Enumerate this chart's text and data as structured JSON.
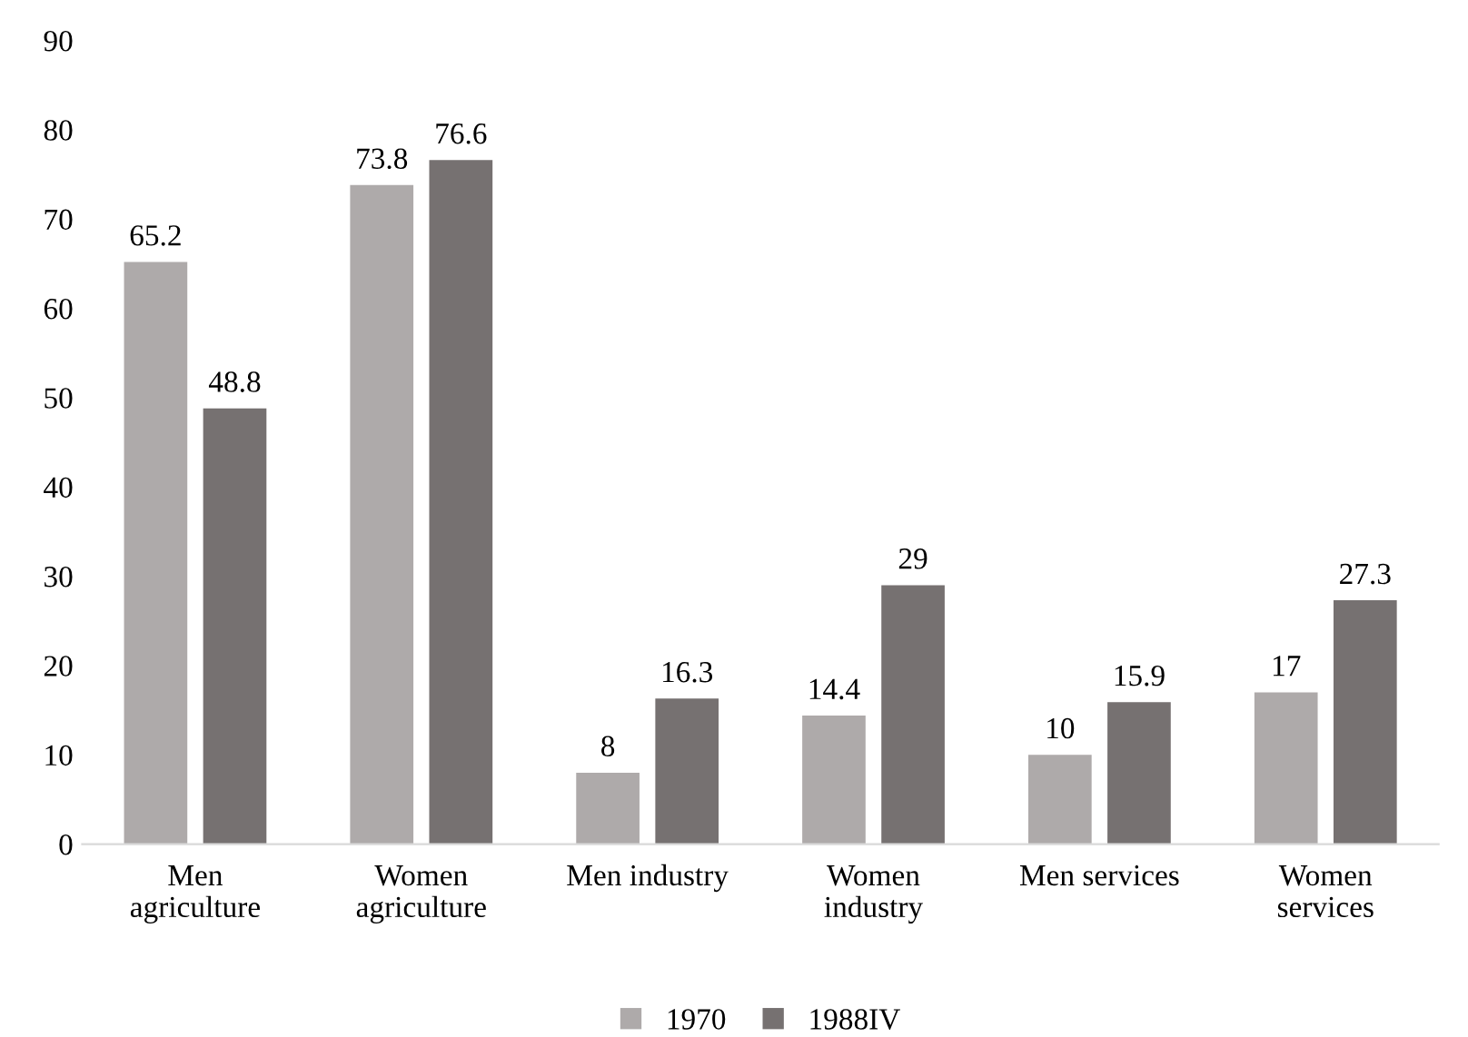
{
  "chart_data": {
    "type": "bar",
    "categories": [
      "Men\nagriculture",
      "Women\nagriculture",
      "Men industry",
      "Women\nindustry",
      "Men services",
      "Women\nservices"
    ],
    "series": [
      {
        "name": "1970",
        "color": "#aeaaaa",
        "values": [
          65.2,
          73.8,
          8,
          14.4,
          10,
          17
        ]
      },
      {
        "name": "1988IV",
        "color": "#767171",
        "values": [
          48.8,
          76.6,
          16.3,
          29,
          15.9,
          27.3
        ]
      }
    ],
    "ylim": [
      0,
      90
    ],
    "yticks": [
      0,
      10,
      20,
      30,
      40,
      50,
      60,
      70,
      80,
      90
    ],
    "data_labels": true,
    "grid": false,
    "legend": "bottom"
  }
}
